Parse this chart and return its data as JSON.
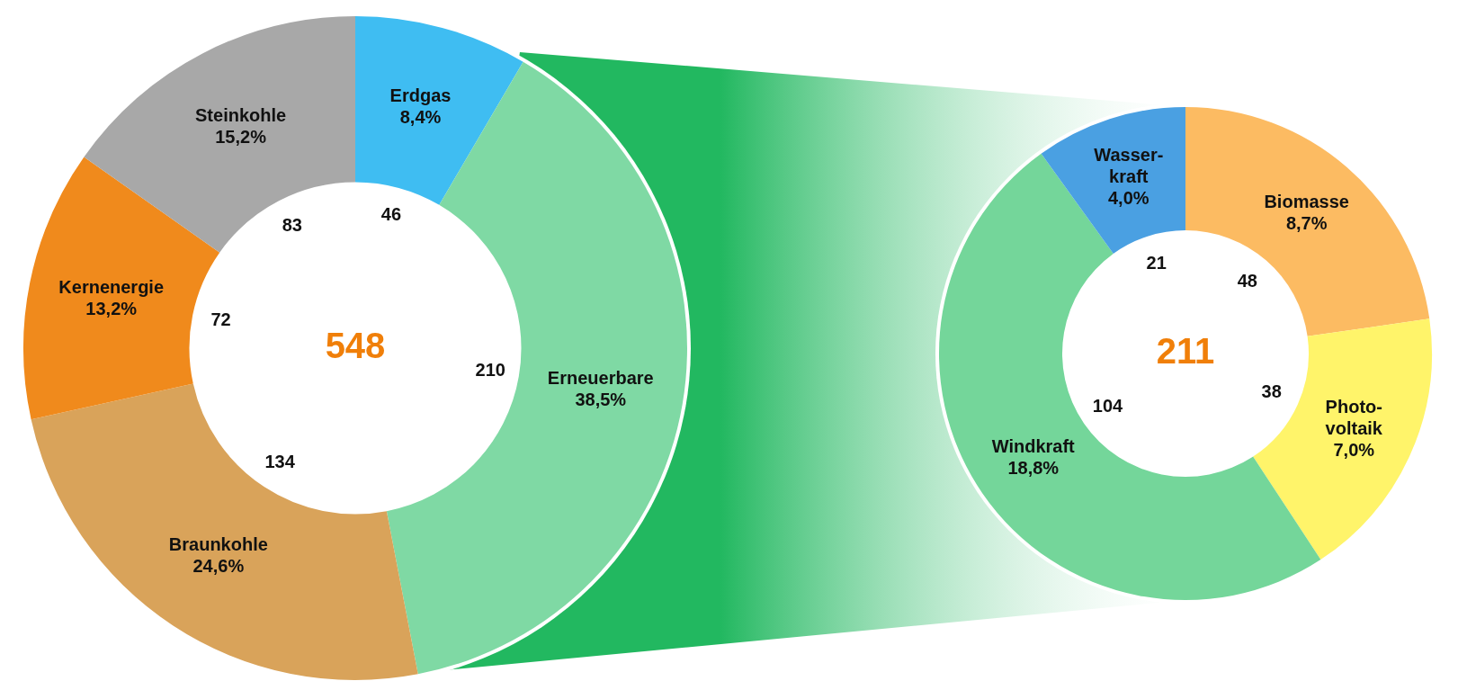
{
  "chart_data": [
    {
      "type": "donut",
      "categories": [
        "Erdgas",
        "Erneuerbare",
        "Braunkohle",
        "Kernenergie",
        "Steinkohle"
      ],
      "values": [
        46,
        210,
        134,
        72,
        83
      ],
      "colors": [
        "#3fbdf2",
        "#7fd9a4",
        "#d9a35a",
        "#f08a1c",
        "#a8a8a8"
      ],
      "data_labels": true,
      "legend": false,
      "annotations": [
        "548",
        {
          "text": "8,4%",
          "x": "Erdgas"
        },
        {
          "text": "38,5%",
          "x": "Erneuerbare"
        },
        {
          "text": "24,6%",
          "x": "Braunkohle"
        },
        {
          "text": "13,2%",
          "x": "Kernenergie"
        },
        {
          "text": "15,2%",
          "x": "Steinkohle"
        }
      ]
    },
    {
      "type": "donut",
      "categories": [
        "Biomasse",
        "Photo-voltaik",
        "Windkraft",
        "Wasser-kraft"
      ],
      "values": [
        48,
        38,
        104,
        21
      ],
      "colors": [
        "#fcbb62",
        "#fff46a",
        "#74d69a",
        "#4aa0e2"
      ],
      "data_labels": true,
      "legend": false,
      "annotations": [
        "211",
        {
          "text": "8,7%",
          "x": "Biomasse"
        },
        {
          "text": "7,0%",
          "x": "Photo-voltaik"
        },
        {
          "text": "18,8%",
          "x": "Windkraft"
        },
        {
          "text": "4,0%",
          "x": "Wasser-kraft"
        }
      ]
    }
  ]
}
